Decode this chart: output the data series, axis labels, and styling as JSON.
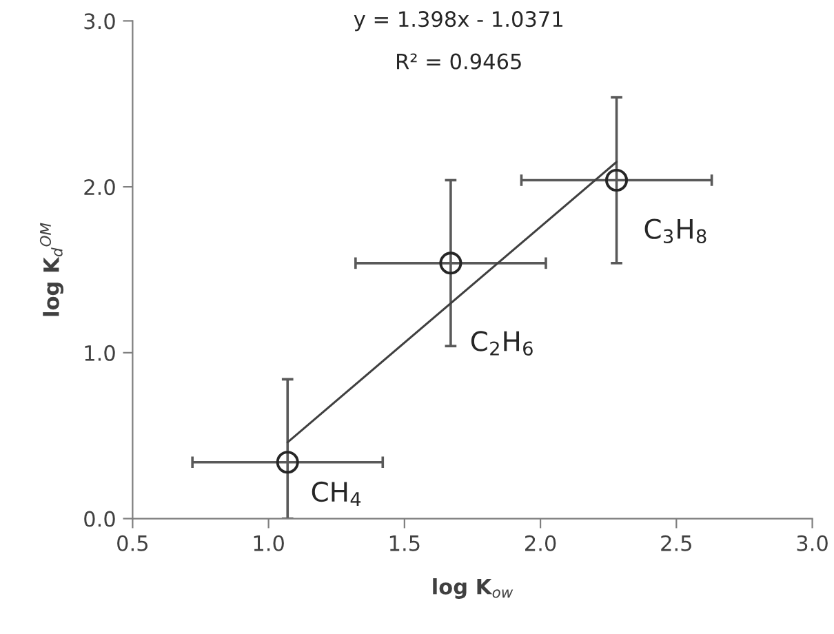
{
  "chart_data": {
    "type": "scatter",
    "xlabel": "log K$_{ow}$",
    "ylabel": "log K$_{d}$$^{OM}$",
    "xlim": [
      0.5,
      3.0
    ],
    "xticks": [
      {
        "value": 0.5,
        "label": "0.5"
      },
      {
        "value": 1.0,
        "label": "1.0"
      },
      {
        "value": 1.5,
        "label": "1.5"
      },
      {
        "value": 2.0,
        "label": "2.0"
      },
      {
        "value": 2.5,
        "label": "2.5"
      },
      {
        "value": 3.0,
        "label": "3.0"
      }
    ],
    "ylim": [
      0.0,
      3.0
    ],
    "yticks": [
      {
        "value": 0.0,
        "label": "0.0"
      },
      {
        "value": 1.0,
        "label": "1.0"
      },
      {
        "value": 2.0,
        "label": "2.0"
      },
      {
        "value": 3.0,
        "label": "3.0"
      }
    ],
    "grid": false,
    "legend": false,
    "series": [
      {
        "marker": "circle",
        "color": "#262626",
        "x": [
          1.07,
          1.67,
          2.28
        ],
        "values": [
          0.34,
          1.54,
          2.04
        ],
        "errors": [
          [
            0.0,
            0.84
          ],
          0.5,
          0.5
        ],
        "xerrors": [
          0.35,
          0.35,
          0.35
        ]
      },
      {
        "type": "line",
        "marker": "none",
        "color": "#404040",
        "x": [
          1.07,
          2.28
        ],
        "values": [
          0.46,
          2.15
        ]
      }
    ],
    "annotations": [
      "y = 1.398x - 1.0371",
      "R² = 0.9465",
      {
        "text": "CH$_{4}$",
        "x": 1.07,
        "y": 0.34
      },
      {
        "text": "C$_{2}$H$_{6}$",
        "x": 1.67,
        "y": 1.04
      },
      {
        "text": "C$_{3}$H$_{8}$",
        "x": 2.28,
        "y": 2.04
      }
    ]
  }
}
